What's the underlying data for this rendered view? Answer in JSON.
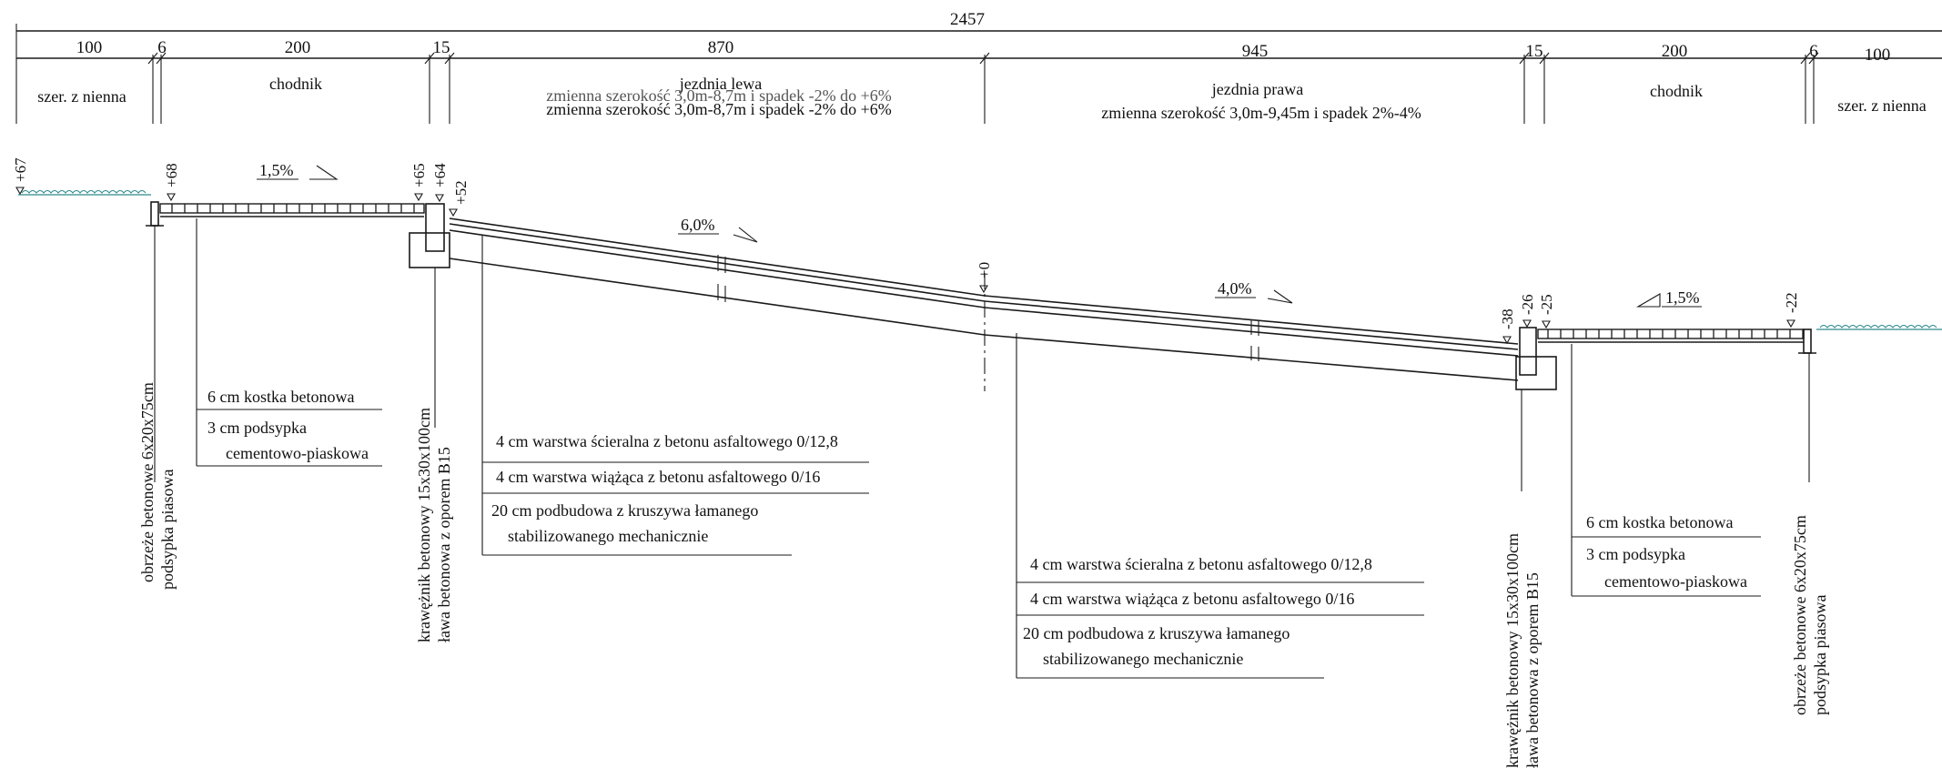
{
  "overall_width": "2457",
  "segments": {
    "s1": {
      "dim": "100",
      "name": "szer. z nienna"
    },
    "s2": {
      "dim": "6"
    },
    "s3": {
      "dim": "200",
      "name": "chodnik"
    },
    "s4": {
      "dim": "15"
    },
    "s5": {
      "dim": "870",
      "name": "jezdnia lewa",
      "desc_overlap": "zmienna szerokość 3,0m-8,7m i spadek -2% do +6%",
      "desc": "zmienna szerokość 3,0m-8,7m i spadek -2% do +6%"
    },
    "s6": {
      "dim": "945",
      "name": "jezdnia prawa",
      "desc": "zmienna szerokość 3,0m-9,45m i spadek 2%-4%"
    },
    "s7": {
      "dim": "15"
    },
    "s8": {
      "dim": "200",
      "name": "chodnik"
    },
    "s9": {
      "dim": "6"
    },
    "s10": {
      "dim": "100",
      "name": "szer. z nienna"
    }
  },
  "elevations": {
    "e67": "+67",
    "e68": "+68",
    "e65": "+65",
    "e64": "+64",
    "e52": "+52",
    "e0": "+0",
    "em38": "-38",
    "em26": "-26",
    "em25": "-25",
    "em22": "-22"
  },
  "slopes": {
    "left_sidewalk": "1,5%",
    "left_road": "6,0%",
    "right_road": "4,0%",
    "right_sidewalk": "1,5%"
  },
  "notes": {
    "edge_left_1": "obrzeże betonowe 6x20x75cm",
    "edge_left_2": "podsypka piasowa",
    "sidewalk_left_1": "6 cm kostka betonowa",
    "sidewalk_left_2": "3 cm podsypka",
    "sidewalk_left_3": "cementowo-piaskowa",
    "curb_left_1": "krawężnik betonowy 15x30x100cm",
    "curb_left_2": "ława betonowa z oporem B15",
    "road_left_1": "4 cm warstwa ścieralna z betonu asfaltowego 0/12,8",
    "road_left_2": "4 cm warstwa wiążąca z betonu asfaltowego 0/16",
    "road_left_3": "20 cm podbudowa z kruszywa łamanego",
    "road_left_4": "stabilizowanego mechanicznie",
    "road_right_1": "4 cm warstwa ścieralna z betonu asfaltowego 0/12,8",
    "road_right_2": "4 cm warstwa wiążąca z betonu asfaltowego 0/16",
    "road_right_3": "20 cm podbudowa z kruszywa łamanego",
    "road_right_4": "stabilizowanego mechanicznie",
    "curb_right_1": "krawężnik betonowy 15x30x100cm",
    "curb_right_2": "ława betonowa z oporem B15",
    "sidewalk_right_1": "6 cm kostka betonowa",
    "sidewalk_right_2": "3 cm podsypka",
    "sidewalk_right_3": "cementowo-piaskowa",
    "edge_right_1": "obrzeże betonowe 6x20x75cm",
    "edge_right_2": "podsypka piasowa"
  },
  "colors": {
    "ink": "#1a1a1a",
    "grass": "#2e8b8b"
  }
}
